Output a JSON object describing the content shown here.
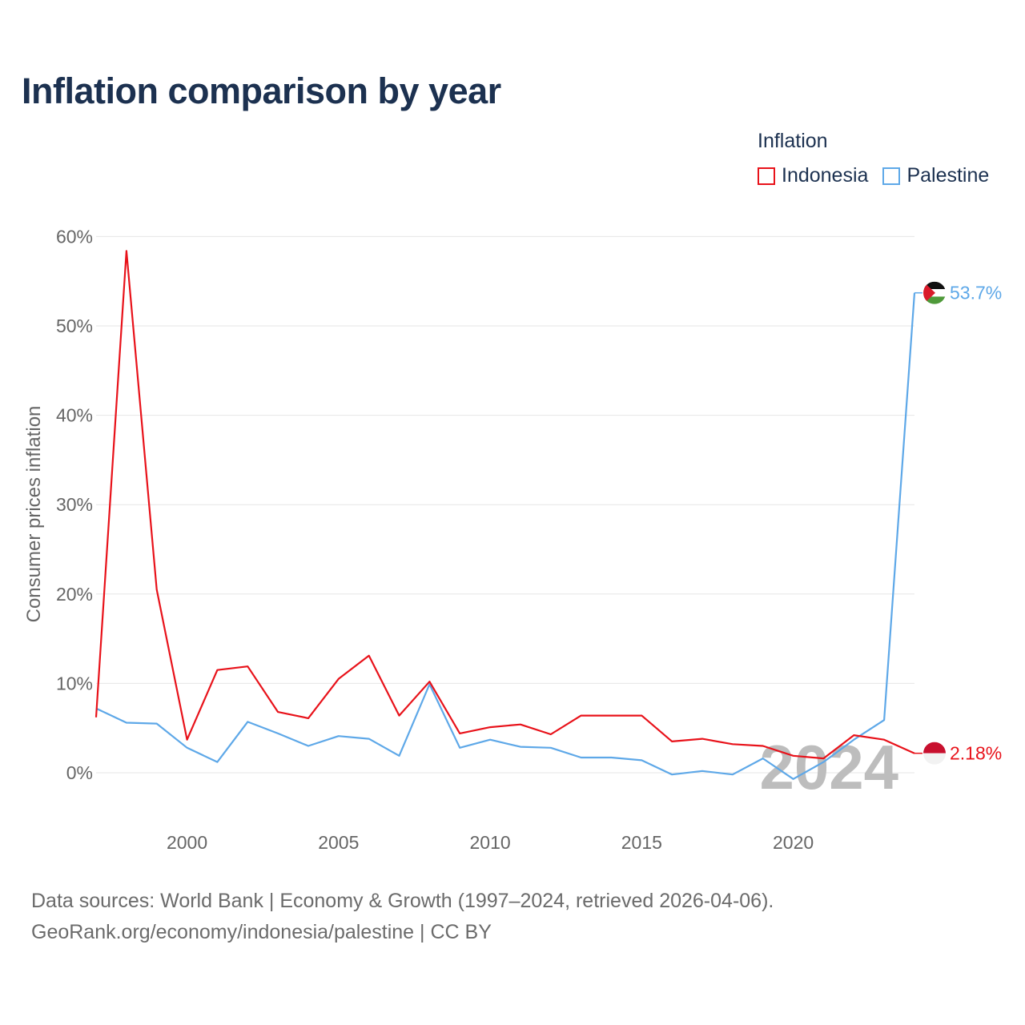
{
  "title": "Inflation comparison by year",
  "legend": {
    "title": "Inflation",
    "items": [
      {
        "label": "Indonesia",
        "color": "#e8121a"
      },
      {
        "label": "Palestine",
        "color": "#5ea8e8"
      }
    ]
  },
  "footer": {
    "line1": "Data sources: World Bank | Economy & Growth (1997–2024, retrieved 2026-04-06).",
    "line2": "GeoRank.org/economy/indonesia/palestine | CC BY"
  },
  "chart_data": {
    "type": "line",
    "title": "Inflation comparison by year",
    "ylabel": "Consumer prices inflation",
    "xlabel": "",
    "x": [
      1997,
      1998,
      1999,
      2000,
      2001,
      2002,
      2003,
      2004,
      2005,
      2006,
      2007,
      2008,
      2009,
      2010,
      2011,
      2012,
      2013,
      2014,
      2015,
      2016,
      2017,
      2018,
      2019,
      2020,
      2021,
      2022,
      2023,
      2024
    ],
    "xlim": [
      1997,
      2024
    ],
    "ylim": [
      -5,
      62
    ],
    "xticks": [
      2000,
      2005,
      2010,
      2015,
      2020
    ],
    "yticks": [
      0,
      10,
      20,
      30,
      40,
      50,
      60
    ],
    "ytick_labels": [
      "0%",
      "10%",
      "20%",
      "30%",
      "40%",
      "50%",
      "60%"
    ],
    "watermark_year": "2024",
    "series": [
      {
        "name": "Indonesia",
        "color": "#e8121a",
        "values": [
          6.2,
          58.4,
          20.5,
          3.7,
          11.5,
          11.9,
          6.8,
          6.1,
          10.5,
          13.1,
          6.4,
          10.2,
          4.4,
          5.1,
          5.4,
          4.3,
          6.4,
          6.4,
          6.4,
          3.5,
          3.8,
          3.2,
          3.0,
          1.9,
          1.6,
          4.2,
          3.7,
          2.18
        ],
        "end_label": "2.18%",
        "flag": "indonesia"
      },
      {
        "name": "Palestine",
        "color": "#5ea8e8",
        "values": [
          7.2,
          5.6,
          5.5,
          2.8,
          1.2,
          5.7,
          4.4,
          3.0,
          4.1,
          3.8,
          1.9,
          9.9,
          2.8,
          3.7,
          2.9,
          2.8,
          1.7,
          1.7,
          1.4,
          -0.2,
          0.2,
          -0.2,
          1.6,
          -0.7,
          1.2,
          3.7,
          5.9,
          53.7
        ],
        "end_label": "53.7%",
        "flag": "palestine"
      }
    ]
  }
}
